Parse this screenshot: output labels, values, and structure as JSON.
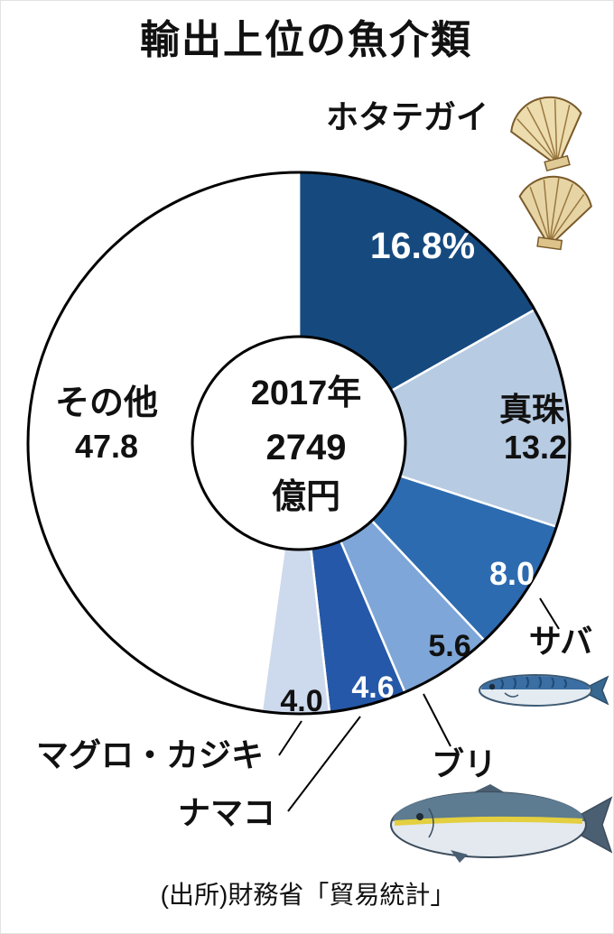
{
  "title": "輸出上位の魚介類",
  "source": "(出所)財務省「貿易統計」",
  "chart_data": {
    "type": "pie",
    "donut": true,
    "start_angle": "top",
    "direction": "clockwise",
    "title": "輸出上位の魚介類",
    "unit": "%",
    "center": {
      "year": "2017年",
      "amount": "2749",
      "unit": "億円"
    },
    "slices": [
      {
        "key": "hotategai",
        "label": "ホタテガイ",
        "value": 16.8,
        "display": "16.8%",
        "color": "#164a7e",
        "text_color": "#ffffff"
      },
      {
        "key": "shinju",
        "label": "真珠",
        "value": 13.2,
        "display": "13.2",
        "color": "#b7cbe2",
        "text_color": "#000000"
      },
      {
        "key": "saba",
        "label": "サバ",
        "value": 8.0,
        "display": "8.0",
        "color": "#2d6bb0",
        "text_color": "#ffffff"
      },
      {
        "key": "buri",
        "label": "ブリ",
        "value": 5.6,
        "display": "5.6",
        "color": "#7ea6d8",
        "text_color": "#000000"
      },
      {
        "key": "namako",
        "label": "ナマコ",
        "value": 4.6,
        "display": "4.6",
        "color": "#2558a8",
        "text_color": "#ffffff"
      },
      {
        "key": "maguro-kajiki",
        "label": "マグロ・カジキ",
        "value": 4.0,
        "display": "4.0",
        "color": "#cdd9ec",
        "text_color": "#000000"
      },
      {
        "key": "sonota",
        "label": "その他",
        "value": 47.8,
        "display": "47.8",
        "color": "#ffffff",
        "text_color": "#000000"
      }
    ],
    "icons": [
      "scallop",
      "mackerel",
      "yellowtail"
    ]
  }
}
